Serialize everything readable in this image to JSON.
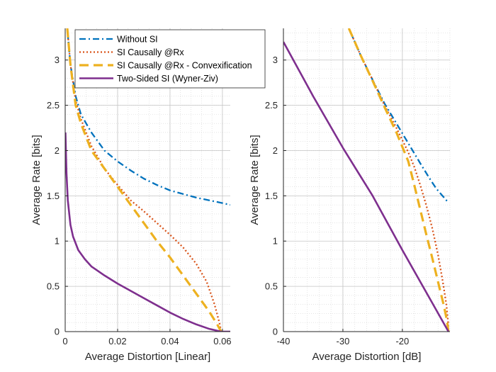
{
  "chart_data": [
    {
      "type": "line",
      "xlabel": "Average Distortion [Linear]",
      "ylabel": "Average Rate [bits]",
      "xlim": [
        0,
        0.063
      ],
      "ylim": [
        0,
        3.35
      ],
      "xticks": [
        0,
        0.02,
        0.04,
        0.06
      ],
      "xtick_labels": [
        "0",
        "0.02",
        "0.04",
        "0.06"
      ],
      "yticks": [
        0,
        0.5,
        1,
        1.5,
        2,
        2.5,
        3
      ],
      "ytick_labels": [
        "0",
        "0.5",
        "1",
        "1.5",
        "2",
        "2.5",
        "3"
      ],
      "grid": true,
      "minor_grid": true,
      "legend_position": "top-right",
      "series": [
        {
          "name": "Without SI",
          "color": "#0072BD",
          "style": "dashdot",
          "x": [
            0.0008,
            0.002,
            0.004,
            0.006,
            0.008,
            0.01,
            0.015,
            0.02,
            0.025,
            0.03,
            0.035,
            0.04,
            0.045,
            0.05,
            0.055,
            0.06,
            0.063
          ],
          "y": [
            3.35,
            2.95,
            2.6,
            2.4,
            2.3,
            2.2,
            2.0,
            1.88,
            1.78,
            1.69,
            1.62,
            1.56,
            1.52,
            1.48,
            1.45,
            1.42,
            1.4
          ]
        },
        {
          "name": "SI Causally @Rx",
          "color": "#D95319",
          "style": "dotted",
          "x": [
            0.0008,
            0.002,
            0.004,
            0.006,
            0.008,
            0.01,
            0.015,
            0.02,
            0.025,
            0.03,
            0.035,
            0.04,
            0.045,
            0.05,
            0.054,
            0.057,
            0.059,
            0.0595
          ],
          "y": [
            3.35,
            2.95,
            2.55,
            2.35,
            2.2,
            2.05,
            1.8,
            1.62,
            1.45,
            1.33,
            1.2,
            1.07,
            0.93,
            0.75,
            0.55,
            0.3,
            0.08,
            0.0
          ]
        },
        {
          "name": "SI Causally @Rx - Convexification",
          "color": "#EDB120",
          "style": "dashed",
          "x": [
            0.0008,
            0.002,
            0.004,
            0.006,
            0.008,
            0.01,
            0.015,
            0.02,
            0.025,
            0.03,
            0.035,
            0.04,
            0.045,
            0.05,
            0.055,
            0.058,
            0.0595
          ],
          "y": [
            3.35,
            2.95,
            2.5,
            2.3,
            2.15,
            2.0,
            1.8,
            1.6,
            1.4,
            1.2,
            1.0,
            0.82,
            0.62,
            0.42,
            0.22,
            0.08,
            0.0
          ]
        },
        {
          "name": "Two-Sided SI (Wyner-Ziv)",
          "color": "#7E2F8E",
          "style": "solid",
          "x": [
            0.0001,
            0.0005,
            0.001,
            0.002,
            0.003,
            0.005,
            0.0075,
            0.01,
            0.015,
            0.02,
            0.025,
            0.03,
            0.035,
            0.04,
            0.045,
            0.05,
            0.055,
            0.0595,
            0.063
          ],
          "y": [
            2.2,
            1.75,
            1.45,
            1.18,
            1.05,
            0.9,
            0.8,
            0.72,
            0.62,
            0.53,
            0.45,
            0.37,
            0.29,
            0.21,
            0.14,
            0.08,
            0.03,
            0.0,
            0.0
          ]
        }
      ]
    },
    {
      "type": "line",
      "xlabel": "Average Distortion [dB]",
      "ylabel": "Average Rate [bits]",
      "xlim": [
        -40,
        -12
      ],
      "ylim": [
        0,
        3.35
      ],
      "xticks": [
        -40,
        -30,
        -20
      ],
      "xtick_labels": [
        "-40",
        "-30",
        "-20"
      ],
      "yticks": [
        0,
        0.5,
        1,
        1.5,
        2,
        2.5,
        3
      ],
      "ytick_labels": [
        "0",
        "0.5",
        "1",
        "1.5",
        "2",
        "2.5",
        "3"
      ],
      "grid": true,
      "minor_grid": true,
      "series": [
        {
          "name": "Without SI",
          "color": "#0072BD",
          "style": "dashdot",
          "x": [
            -29.0,
            -27.0,
            -25.0,
            -23.0,
            -21.0,
            -19.0,
            -17.0,
            -15.5,
            -14.3,
            -12.2
          ],
          "y": [
            3.35,
            3.05,
            2.78,
            2.52,
            2.3,
            2.08,
            1.86,
            1.7,
            1.58,
            1.42
          ]
        },
        {
          "name": "SI Causally @Rx",
          "color": "#D95319",
          "style": "dotted",
          "x": [
            -29.0,
            -27.0,
            -25.0,
            -23.0,
            -21.0,
            -19.0,
            -18.0,
            -17.0,
            -16.0,
            -15.0,
            -14.0,
            -13.2,
            -12.6,
            -12.3,
            -12.25
          ],
          "y": [
            3.35,
            3.05,
            2.78,
            2.5,
            2.25,
            1.98,
            1.82,
            1.62,
            1.4,
            1.15,
            0.85,
            0.55,
            0.3,
            0.1,
            0.0
          ]
        },
        {
          "name": "SI Causally @Rx - Convexification",
          "color": "#EDB120",
          "style": "dashed",
          "x": [
            -29.0,
            -27.0,
            -25.0,
            -23.0,
            -21.0,
            -19.0,
            -18.0,
            -17.0,
            -16.0,
            -15.0,
            -14.0,
            -13.0,
            -12.5,
            -12.25
          ],
          "y": [
            3.35,
            3.05,
            2.77,
            2.48,
            2.2,
            1.88,
            1.62,
            1.35,
            1.08,
            0.82,
            0.55,
            0.28,
            0.12,
            0.0
          ]
        },
        {
          "name": "Two-Sided SI (Wyner-Ziv)",
          "color": "#7E2F8E",
          "style": "solid",
          "x": [
            -40.0,
            -35.0,
            -30.0,
            -25.0,
            -20.0,
            -15.0,
            -12.25
          ],
          "y": [
            3.2,
            2.6,
            2.03,
            1.5,
            0.9,
            0.32,
            0.0
          ]
        }
      ]
    }
  ]
}
